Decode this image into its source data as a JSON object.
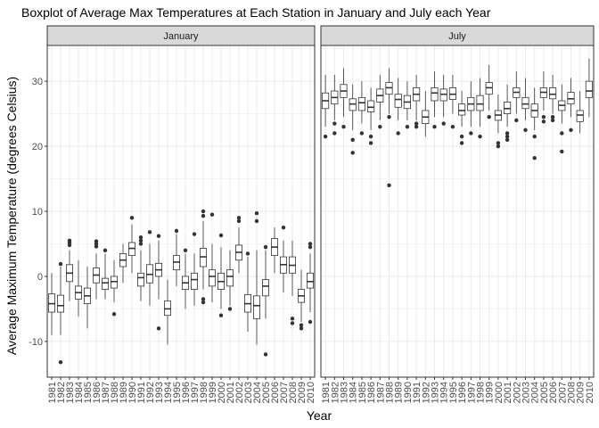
{
  "chart_data": {
    "type": "boxplot",
    "title": "Boxplot of Average Max Temperatures at Each Station in January and July each Year",
    "xlabel": "Year",
    "ylabel": "Average Maximum Temperature (degrees Celsius)",
    "ylim": [
      -15.5,
      35.5
    ],
    "yticks": [
      -10,
      0,
      10,
      20,
      30
    ],
    "grid": true,
    "categories": [
      "1981",
      "1982",
      "1983",
      "1984",
      "1985",
      "1986",
      "1987",
      "1988",
      "1989",
      "1990",
      "1991",
      "1992",
      "1993",
      "1994",
      "1995",
      "1996",
      "1997",
      "1998",
      "1999",
      "2000",
      "2001",
      "2002",
      "2003",
      "2004",
      "2005",
      "2006",
      "2007",
      "2008",
      "2009",
      "2010"
    ],
    "panels": [
      {
        "name": "January",
        "boxes": [
          {
            "q1": -5.5,
            "median": -4.2,
            "q3": -2.7,
            "lower": -9.0,
            "upper": 0.5,
            "outliers": []
          },
          {
            "q1": -5.5,
            "median": -4.5,
            "q3": -2.9,
            "lower": -9.0,
            "upper": 1.5,
            "outliers": [
              -13.2,
              1.9
            ]
          },
          {
            "q1": -0.8,
            "median": 0.5,
            "q3": 1.8,
            "lower": -3.8,
            "upper": 4.0,
            "outliers": [
              4.8,
              5.2,
              5.5
            ]
          },
          {
            "q1": -3.5,
            "median": -2.5,
            "q3": -1.5,
            "lower": -6.2,
            "upper": 2.5,
            "outliers": []
          },
          {
            "q1": -4.2,
            "median": -3.0,
            "q3": -1.8,
            "lower": -8.0,
            "upper": 1.5,
            "outliers": []
          },
          {
            "q1": -1.0,
            "median": 0.2,
            "q3": 1.3,
            "lower": -3.5,
            "upper": 3.5,
            "outliers": [
              4.6,
              5.0,
              5.4
            ]
          },
          {
            "q1": -2.0,
            "median": -1.0,
            "q3": -0.3,
            "lower": -3.5,
            "upper": 3.5,
            "outliers": [
              4.0
            ]
          },
          {
            "q1": -1.8,
            "median": -0.8,
            "q3": 0.0,
            "lower": -4.0,
            "upper": 2.5,
            "outliers": [
              -5.8
            ]
          },
          {
            "q1": 1.5,
            "median": 2.5,
            "q3": 3.5,
            "lower": -1.0,
            "upper": 5.0,
            "outliers": []
          },
          {
            "q1": 3.2,
            "median": 4.3,
            "q3": 5.2,
            "lower": 0.5,
            "upper": 8.0,
            "outliers": [
              9.0
            ]
          },
          {
            "q1": -1.5,
            "median": -0.2,
            "q3": 0.5,
            "lower": -3.8,
            "upper": 4.0,
            "outliers": [
              5.0,
              5.5,
              6.0
            ]
          },
          {
            "q1": -1.0,
            "median": 0.3,
            "q3": 1.8,
            "lower": -4.5,
            "upper": 5.0,
            "outliers": [
              6.8
            ]
          },
          {
            "q1": 0.0,
            "median": 1.0,
            "q3": 2.0,
            "lower": -3.5,
            "upper": 5.5,
            "outliers": [
              6.2,
              -8.0
            ]
          },
          {
            "q1": -6.0,
            "median": -5.0,
            "q3": -3.8,
            "lower": -10.5,
            "upper": -0.5,
            "outliers": []
          },
          {
            "q1": 1.0,
            "median": 2.2,
            "q3": 3.2,
            "lower": -1.5,
            "upper": 6.5,
            "outliers": [
              7.0
            ]
          },
          {
            "q1": -2.0,
            "median": -1.0,
            "q3": 0.0,
            "lower": -5.0,
            "upper": 3.5,
            "outliers": [
              4.0
            ]
          },
          {
            "q1": -2.0,
            "median": -0.5,
            "q3": 0.5,
            "lower": -4.5,
            "upper": 3.5,
            "outliers": [
              6.5
            ]
          },
          {
            "q1": 1.5,
            "median": 3.0,
            "q3": 4.3,
            "lower": -2.0,
            "upper": 8.5,
            "outliers": [
              10.0,
              9.3,
              -3.5,
              -4.0
            ]
          },
          {
            "q1": -1.5,
            "median": 0.0,
            "q3": 1.0,
            "lower": -4.0,
            "upper": 5.0,
            "outliers": [
              9.5
            ]
          },
          {
            "q1": -2.0,
            "median": -0.8,
            "q3": 0.5,
            "lower": -5.0,
            "upper": 4.5,
            "outliers": [
              6.3,
              -6.0
            ]
          },
          {
            "q1": -1.5,
            "median": 0.0,
            "q3": 1.0,
            "lower": -4.5,
            "upper": 4.0,
            "outliers": [
              -5.0
            ]
          },
          {
            "q1": 2.5,
            "median": 3.7,
            "q3": 4.8,
            "lower": 0.5,
            "upper": 7.5,
            "outliers": [
              8.5,
              9.0
            ]
          },
          {
            "q1": -5.5,
            "median": -4.2,
            "q3": -2.8,
            "lower": -8.5,
            "upper": 3.0,
            "outliers": [
              3.5
            ]
          },
          {
            "q1": -6.5,
            "median": -4.5,
            "q3": -3.0,
            "lower": -10.5,
            "upper": 4.0,
            "outliers": [
              9.7,
              8.5
            ]
          },
          {
            "q1": -3.0,
            "median": -1.5,
            "q3": -0.5,
            "lower": -6.5,
            "upper": 4.0,
            "outliers": [
              -12.0,
              4.5
            ]
          },
          {
            "q1": 3.2,
            "median": 4.5,
            "q3": 5.8,
            "lower": 0.5,
            "upper": 7.5,
            "outliers": []
          },
          {
            "q1": 0.5,
            "median": 1.8,
            "q3": 3.0,
            "lower": -2.5,
            "upper": 5.5,
            "outliers": [
              7.5
            ]
          },
          {
            "q1": 0.5,
            "median": 1.7,
            "q3": 3.0,
            "lower": -3.0,
            "upper": 5.5,
            "outliers": [
              -6.5,
              -7.2
            ]
          },
          {
            "q1": -4.0,
            "median": -3.0,
            "q3": -2.0,
            "lower": -7.0,
            "upper": 1.0,
            "outliers": [
              -7.5,
              -8.0
            ]
          },
          {
            "q1": -1.8,
            "median": -0.8,
            "q3": 0.5,
            "lower": -5.5,
            "upper": 3.5,
            "outliers": [
              4.5,
              5.0,
              -7.0
            ]
          }
        ]
      },
      {
        "name": "July",
        "boxes": [
          {
            "q1": 25.8,
            "median": 27.0,
            "q3": 28.2,
            "lower": 23.0,
            "upper": 31.0,
            "outliers": [
              21.5
            ]
          },
          {
            "q1": 26.5,
            "median": 27.5,
            "q3": 28.5,
            "lower": 24.0,
            "upper": 31.0,
            "outliers": [
              22.0,
              23.5
            ]
          },
          {
            "q1": 27.5,
            "median": 28.5,
            "q3": 29.5,
            "lower": 24.5,
            "upper": 32.0,
            "outliers": [
              23.0
            ]
          },
          {
            "q1": 25.5,
            "median": 26.5,
            "q3": 27.3,
            "lower": 22.5,
            "upper": 29.5,
            "outliers": [
              19.0,
              21.0
            ]
          },
          {
            "q1": 25.5,
            "median": 26.7,
            "q3": 27.5,
            "lower": 23.5,
            "upper": 30.0,
            "outliers": [
              22.0
            ]
          },
          {
            "q1": 25.3,
            "median": 26.0,
            "q3": 27.0,
            "lower": 22.5,
            "upper": 29.0,
            "outliers": [
              21.5,
              20.5
            ]
          },
          {
            "q1": 26.8,
            "median": 27.8,
            "q3": 28.8,
            "lower": 24.0,
            "upper": 31.0,
            "outliers": [
              23.0
            ]
          },
          {
            "q1": 28.0,
            "median": 29.0,
            "q3": 29.8,
            "lower": 25.0,
            "upper": 32.0,
            "outliers": [
              14.0,
              24.5
            ]
          },
          {
            "q1": 26.0,
            "median": 27.2,
            "q3": 28.0,
            "lower": 24.0,
            "upper": 30.5,
            "outliers": [
              22.0
            ]
          },
          {
            "q1": 25.8,
            "median": 26.8,
            "q3": 27.8,
            "lower": 24.0,
            "upper": 30.0,
            "outliers": [
              23.0
            ]
          },
          {
            "q1": 27.0,
            "median": 28.0,
            "q3": 29.0,
            "lower": 24.0,
            "upper": 31.0,
            "outliers": [
              23.5,
              23.0
            ]
          },
          {
            "q1": 23.5,
            "median": 24.5,
            "q3": 25.5,
            "lower": 21.5,
            "upper": 28.5,
            "outliers": []
          },
          {
            "q1": 27.0,
            "median": 28.2,
            "q3": 29.0,
            "lower": 24.5,
            "upper": 31.5,
            "outliers": [
              23.0
            ]
          },
          {
            "q1": 27.0,
            "median": 28.0,
            "q3": 28.8,
            "lower": 24.5,
            "upper": 31.0,
            "outliers": [
              23.5
            ]
          },
          {
            "q1": 27.2,
            "median": 28.0,
            "q3": 29.0,
            "lower": 25.0,
            "upper": 31.0,
            "outliers": [
              23.0
            ]
          },
          {
            "q1": 24.8,
            "median": 25.5,
            "q3": 26.5,
            "lower": 23.0,
            "upper": 28.5,
            "outliers": [
              21.5,
              20.5
            ]
          },
          {
            "q1": 25.5,
            "median": 26.5,
            "q3": 27.5,
            "lower": 23.0,
            "upper": 30.0,
            "outliers": [
              22.0
            ]
          },
          {
            "q1": 25.5,
            "median": 26.5,
            "q3": 27.8,
            "lower": 23.0,
            "upper": 30.5,
            "outliers": [
              21.5
            ]
          },
          {
            "q1": 28.0,
            "median": 29.0,
            "q3": 29.8,
            "lower": 25.5,
            "upper": 32.5,
            "outliers": [
              24.5
            ]
          },
          {
            "q1": 24.0,
            "median": 24.8,
            "q3": 25.5,
            "lower": 22.0,
            "upper": 28.0,
            "outliers": [
              20.0,
              20.5
            ]
          },
          {
            "q1": 25.0,
            "median": 25.8,
            "q3": 26.8,
            "lower": 23.0,
            "upper": 29.5,
            "outliers": [
              22.0,
              21.5,
              21.0
            ]
          },
          {
            "q1": 27.5,
            "median": 28.3,
            "q3": 29.0,
            "lower": 25.0,
            "upper": 31.5,
            "outliers": [
              24.0
            ]
          },
          {
            "q1": 25.8,
            "median": 26.5,
            "q3": 27.5,
            "lower": 24.0,
            "upper": 30.5,
            "outliers": [
              22.5
            ]
          },
          {
            "q1": 24.5,
            "median": 25.5,
            "q3": 26.5,
            "lower": 22.5,
            "upper": 29.0,
            "outliers": [
              21.5,
              18.2
            ]
          },
          {
            "q1": 27.5,
            "median": 28.3,
            "q3": 29.0,
            "lower": 25.5,
            "upper": 31.5,
            "outliers": [
              24.5,
              23.8
            ]
          },
          {
            "q1": 27.3,
            "median": 28.0,
            "q3": 29.0,
            "lower": 25.0,
            "upper": 31.0,
            "outliers": [
              24.0,
              24.5
            ]
          },
          {
            "q1": 25.5,
            "median": 26.3,
            "q3": 27.0,
            "lower": 23.5,
            "upper": 29.5,
            "outliers": [
              19.2,
              22.0
            ]
          },
          {
            "q1": 26.5,
            "median": 27.3,
            "q3": 28.3,
            "lower": 24.5,
            "upper": 30.5,
            "outliers": [
              22.5
            ]
          },
          {
            "q1": 23.8,
            "median": 24.8,
            "q3": 25.5,
            "lower": 22.0,
            "upper": 28.5,
            "outliers": []
          },
          {
            "q1": 27.5,
            "median": 28.5,
            "q3": 30.0,
            "lower": 24.5,
            "upper": 33.5,
            "outliers": []
          }
        ]
      }
    ]
  }
}
